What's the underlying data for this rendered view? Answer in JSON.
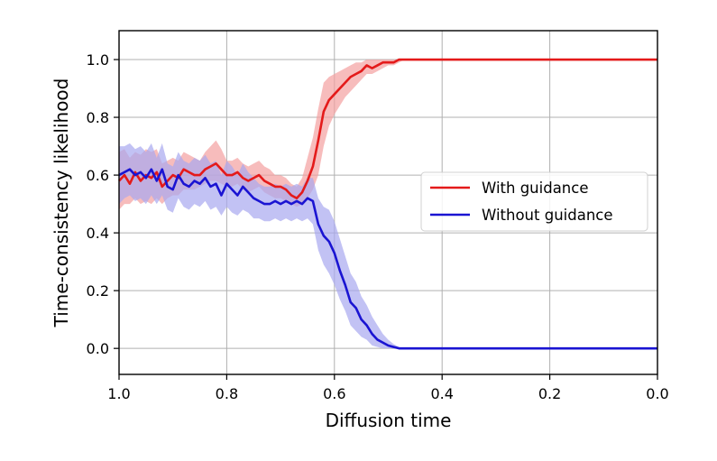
{
  "chart_data": {
    "type": "line",
    "title": "",
    "xlabel": "Diffusion time",
    "ylabel": "Time-consistency likelihood",
    "xlim": [
      1.0,
      0.0
    ],
    "ylim": [
      -0.09,
      1.1
    ],
    "x_reversed": true,
    "xticks": [
      1.0,
      0.8,
      0.6,
      0.4,
      0.2,
      0.0
    ],
    "xtick_labels": [
      "1.0",
      "0.8",
      "0.6",
      "0.4",
      "0.2",
      "0.0"
    ],
    "yticks": [
      0.0,
      0.2,
      0.4,
      0.6,
      0.8,
      1.0
    ],
    "ytick_labels": [
      "0.0",
      "0.2",
      "0.4",
      "0.6",
      "0.8",
      "1.0"
    ],
    "grid": true,
    "legend_position": "center-right",
    "series": [
      {
        "name": "With guidance",
        "color": "#e41a1a",
        "band_color": "#f4a0a0",
        "x": [
          1.0,
          0.99,
          0.98,
          0.97,
          0.96,
          0.95,
          0.94,
          0.93,
          0.92,
          0.91,
          0.9,
          0.89,
          0.88,
          0.87,
          0.86,
          0.85,
          0.84,
          0.83,
          0.82,
          0.81,
          0.8,
          0.79,
          0.78,
          0.77,
          0.76,
          0.75,
          0.74,
          0.73,
          0.72,
          0.71,
          0.7,
          0.69,
          0.68,
          0.67,
          0.66,
          0.65,
          0.64,
          0.63,
          0.62,
          0.61,
          0.6,
          0.59,
          0.58,
          0.57,
          0.56,
          0.55,
          0.54,
          0.53,
          0.52,
          0.51,
          0.5,
          0.49,
          0.48,
          0.47,
          0.46,
          0.4,
          0.3,
          0.2,
          0.1,
          0.0
        ],
        "values": [
          0.58,
          0.6,
          0.57,
          0.61,
          0.58,
          0.6,
          0.59,
          0.61,
          0.56,
          0.58,
          0.6,
          0.59,
          0.62,
          0.61,
          0.6,
          0.6,
          0.62,
          0.63,
          0.64,
          0.62,
          0.6,
          0.6,
          0.61,
          0.59,
          0.58,
          0.59,
          0.6,
          0.58,
          0.57,
          0.56,
          0.56,
          0.55,
          0.53,
          0.52,
          0.54,
          0.58,
          0.63,
          0.72,
          0.82,
          0.86,
          0.88,
          0.9,
          0.92,
          0.94,
          0.95,
          0.96,
          0.98,
          0.97,
          0.98,
          0.99,
          0.99,
          0.99,
          1.0,
          1.0,
          1.0,
          1.0,
          1.0,
          1.0,
          1.0,
          1.0
        ],
        "lower": [
          0.48,
          0.5,
          0.5,
          0.52,
          0.5,
          0.51,
          0.5,
          0.52,
          0.5,
          0.52,
          0.53,
          0.53,
          0.55,
          0.55,
          0.55,
          0.56,
          0.57,
          0.58,
          0.58,
          0.57,
          0.56,
          0.56,
          0.57,
          0.55,
          0.54,
          0.55,
          0.56,
          0.54,
          0.53,
          0.52,
          0.52,
          0.51,
          0.5,
          0.49,
          0.5,
          0.52,
          0.55,
          0.6,
          0.7,
          0.77,
          0.81,
          0.84,
          0.87,
          0.89,
          0.91,
          0.93,
          0.95,
          0.95,
          0.96,
          0.97,
          0.98,
          0.98,
          0.99,
          1.0,
          1.0,
          1.0,
          1.0,
          1.0,
          1.0,
          1.0
        ],
        "upper": [
          0.68,
          0.69,
          0.66,
          0.68,
          0.67,
          0.69,
          0.68,
          0.69,
          0.64,
          0.65,
          0.66,
          0.65,
          0.68,
          0.67,
          0.66,
          0.65,
          0.68,
          0.7,
          0.72,
          0.69,
          0.65,
          0.65,
          0.66,
          0.64,
          0.63,
          0.64,
          0.65,
          0.63,
          0.62,
          0.6,
          0.6,
          0.59,
          0.57,
          0.56,
          0.59,
          0.66,
          0.73,
          0.83,
          0.92,
          0.94,
          0.95,
          0.96,
          0.97,
          0.98,
          0.99,
          0.99,
          1.0,
          1.0,
          1.0,
          1.0,
          1.0,
          1.0,
          1.0,
          1.0,
          1.0,
          1.0,
          1.0,
          1.0,
          1.0,
          1.0
        ]
      },
      {
        "name": "Without guidance",
        "color": "#1a14d2",
        "band_color": "#a8a8f0",
        "x": [
          1.0,
          0.99,
          0.98,
          0.97,
          0.96,
          0.95,
          0.94,
          0.93,
          0.92,
          0.91,
          0.9,
          0.89,
          0.88,
          0.87,
          0.86,
          0.85,
          0.84,
          0.83,
          0.82,
          0.81,
          0.8,
          0.79,
          0.78,
          0.77,
          0.76,
          0.75,
          0.74,
          0.73,
          0.72,
          0.71,
          0.7,
          0.69,
          0.68,
          0.67,
          0.66,
          0.65,
          0.64,
          0.63,
          0.62,
          0.61,
          0.6,
          0.59,
          0.58,
          0.57,
          0.56,
          0.55,
          0.54,
          0.53,
          0.52,
          0.51,
          0.5,
          0.49,
          0.48,
          0.47,
          0.46,
          0.4,
          0.3,
          0.2,
          0.1,
          0.0
        ],
        "values": [
          0.6,
          0.61,
          0.62,
          0.6,
          0.61,
          0.59,
          0.62,
          0.58,
          0.62,
          0.56,
          0.55,
          0.6,
          0.57,
          0.56,
          0.58,
          0.57,
          0.59,
          0.56,
          0.57,
          0.53,
          0.57,
          0.55,
          0.53,
          0.56,
          0.54,
          0.52,
          0.51,
          0.5,
          0.5,
          0.51,
          0.5,
          0.51,
          0.5,
          0.51,
          0.5,
          0.52,
          0.51,
          0.43,
          0.39,
          0.37,
          0.33,
          0.27,
          0.22,
          0.16,
          0.14,
          0.1,
          0.08,
          0.05,
          0.03,
          0.02,
          0.01,
          0.005,
          0.0,
          0.0,
          0.0,
          0.0,
          0.0,
          0.0,
          0.0,
          0.0
        ],
        "lower": [
          0.5,
          0.52,
          0.53,
          0.51,
          0.52,
          0.5,
          0.53,
          0.5,
          0.53,
          0.48,
          0.47,
          0.52,
          0.49,
          0.48,
          0.5,
          0.49,
          0.51,
          0.48,
          0.49,
          0.46,
          0.49,
          0.47,
          0.46,
          0.48,
          0.47,
          0.45,
          0.45,
          0.44,
          0.44,
          0.45,
          0.44,
          0.45,
          0.44,
          0.45,
          0.44,
          0.45,
          0.43,
          0.34,
          0.29,
          0.26,
          0.22,
          0.17,
          0.13,
          0.08,
          0.06,
          0.04,
          0.03,
          0.01,
          0.005,
          0.0,
          0.0,
          0.0,
          0.0,
          0.0,
          0.0,
          0.0,
          0.0,
          0.0,
          0.0,
          0.0
        ],
        "upper": [
          0.7,
          0.7,
          0.71,
          0.69,
          0.7,
          0.68,
          0.71,
          0.66,
          0.71,
          0.64,
          0.63,
          0.68,
          0.65,
          0.64,
          0.66,
          0.65,
          0.67,
          0.64,
          0.65,
          0.6,
          0.65,
          0.63,
          0.6,
          0.64,
          0.61,
          0.59,
          0.57,
          0.56,
          0.56,
          0.57,
          0.56,
          0.57,
          0.56,
          0.57,
          0.56,
          0.59,
          0.59,
          0.52,
          0.49,
          0.48,
          0.44,
          0.38,
          0.32,
          0.26,
          0.23,
          0.18,
          0.15,
          0.11,
          0.08,
          0.05,
          0.03,
          0.015,
          0.005,
          0.0,
          0.0,
          0.0,
          0.0,
          0.0,
          0.0,
          0.0
        ]
      }
    ]
  }
}
